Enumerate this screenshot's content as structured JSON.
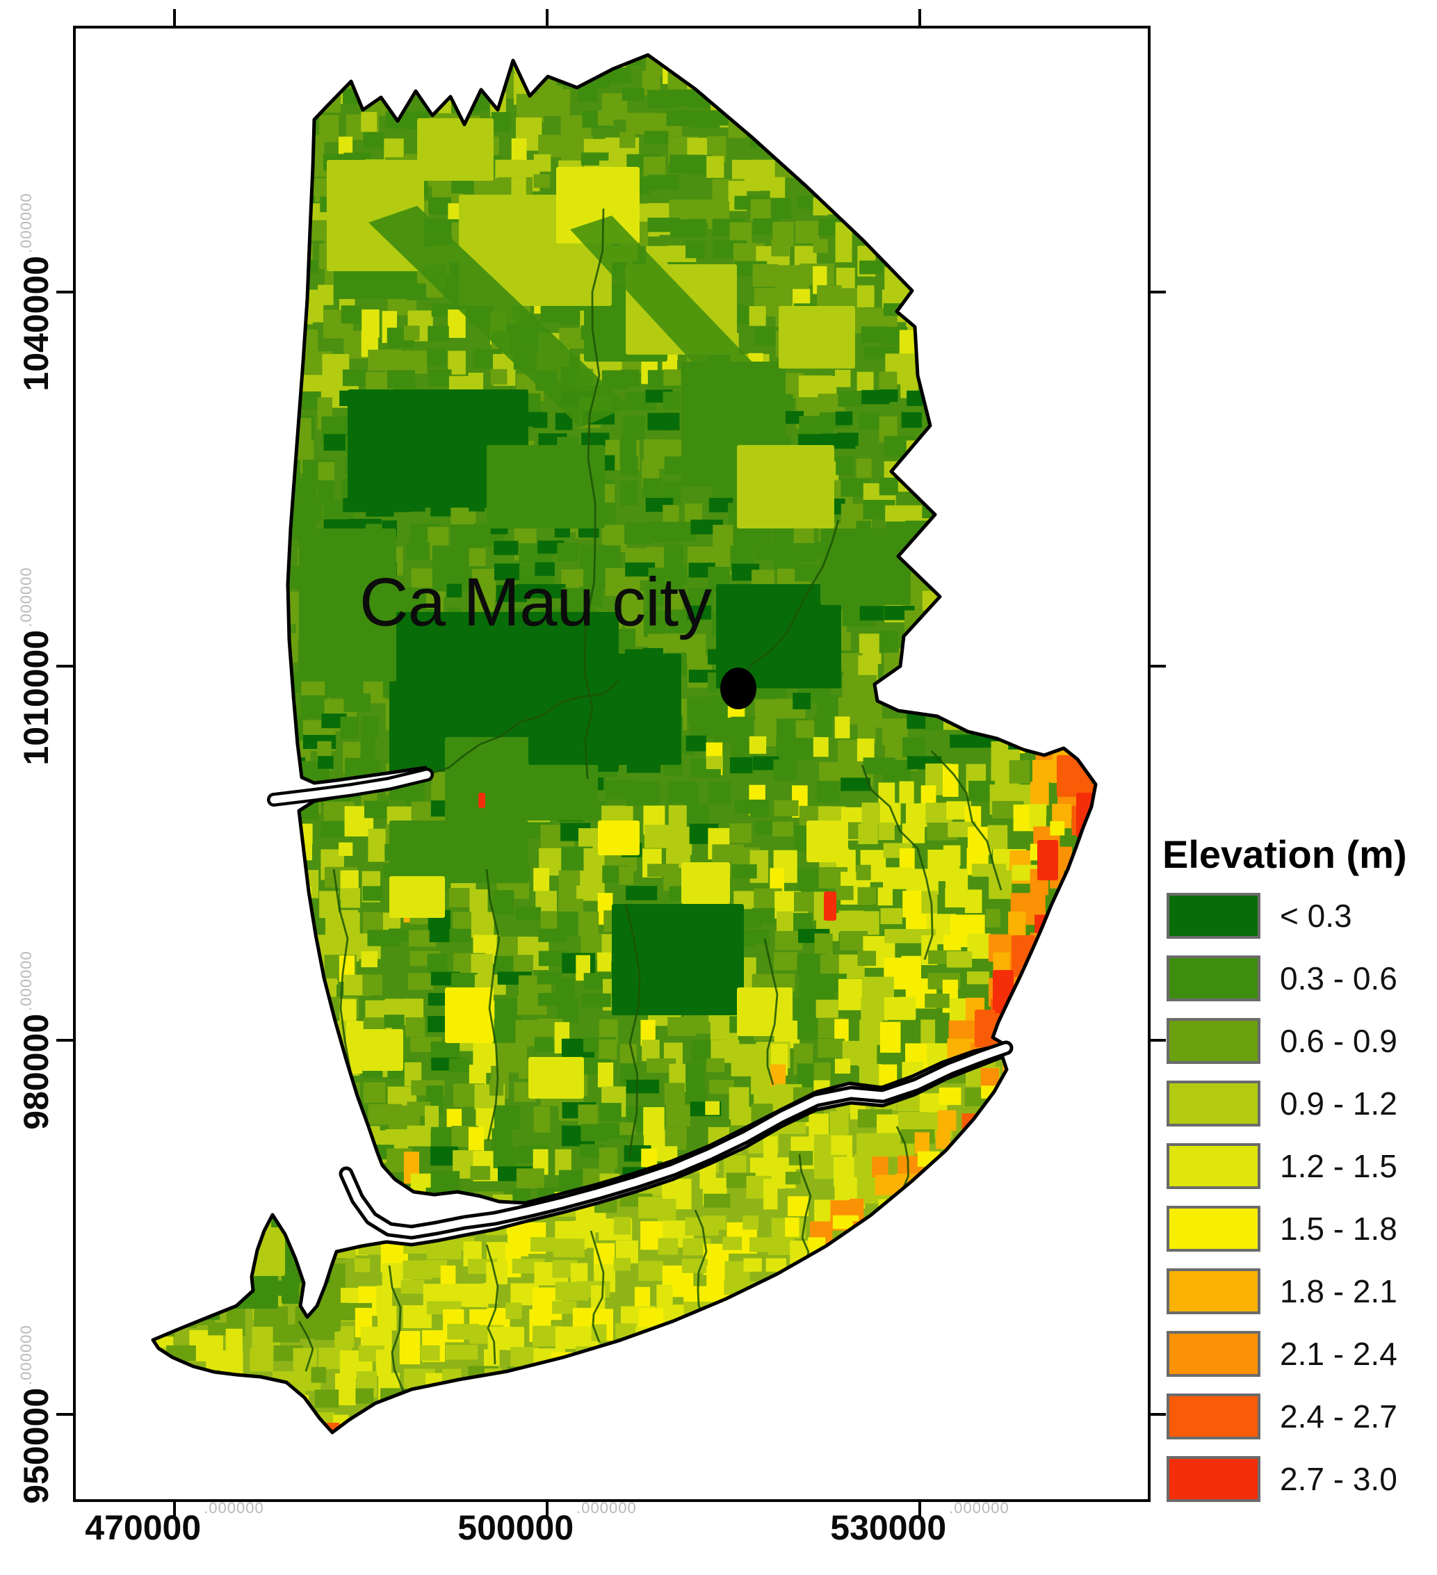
{
  "map": {
    "city_label": "Ca Mau city",
    "marker": "filled-black-dot"
  },
  "axes": {
    "superscript": ".000000",
    "x_ticks": [
      {
        "label": "470000"
      },
      {
        "label": "500000"
      },
      {
        "label": "530000"
      }
    ],
    "y_ticks": [
      {
        "label": "1040000"
      },
      {
        "label": "1010000"
      },
      {
        "label": "980000"
      },
      {
        "label": "950000"
      }
    ]
  },
  "legend": {
    "title": "Elevation (m)",
    "entries": [
      {
        "label": "< 0.3",
        "color": "#086d08"
      },
      {
        "label": "0.3 - 0.6",
        "color": "#3f8d0e"
      },
      {
        "label": "0.6 - 0.9",
        "color": "#6ba00f"
      },
      {
        "label": "0.9 - 1.2",
        "color": "#b3cc11"
      },
      {
        "label": "1.2 - 1.5",
        "color": "#e0e60c"
      },
      {
        "label": "1.5 - 1.8",
        "color": "#f8ef00"
      },
      {
        "label": "1.8 - 2.1",
        "color": "#fbb203"
      },
      {
        "label": "2.1 - 2.4",
        "color": "#fb9104"
      },
      {
        "label": "2.4 - 2.7",
        "color": "#f95c07"
      },
      {
        "label": "2.7 - 3.0",
        "color": "#f42e08"
      }
    ]
  },
  "frame": {
    "border_color": "#000000",
    "water_color": "#ffffff",
    "river_bank_color": "#000000"
  }
}
